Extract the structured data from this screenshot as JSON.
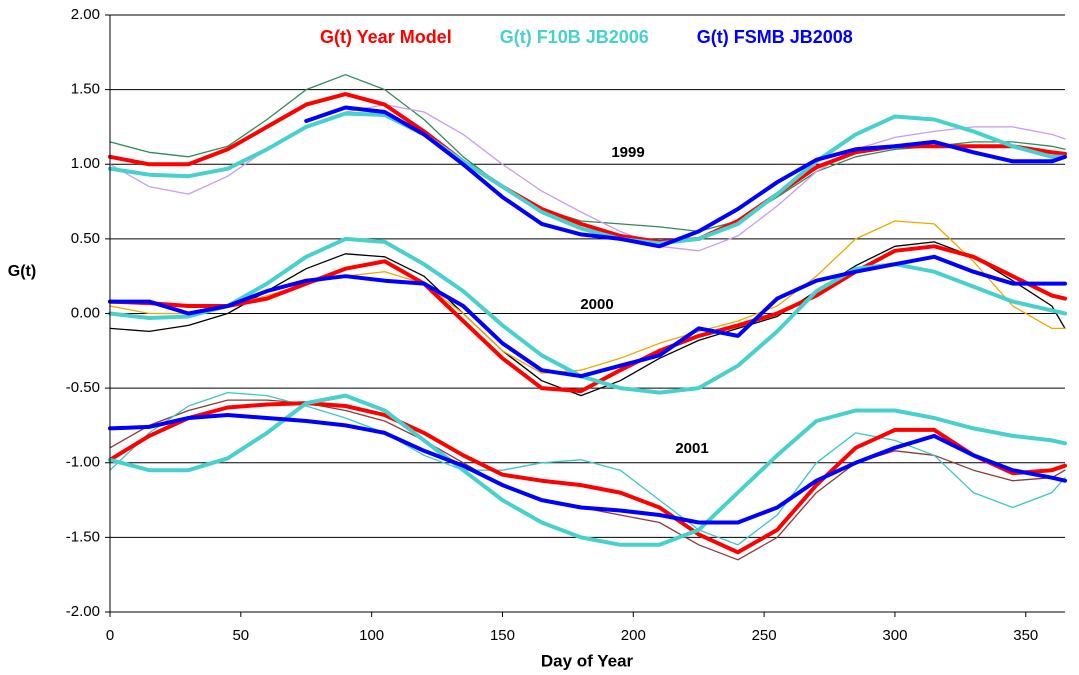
{
  "chart_data": {
    "type": "line",
    "x_label": "Day of Year",
    "y_label": "G(t)",
    "annotations": [
      "1999",
      "2000",
      "2001"
    ],
    "x": [
      0,
      15,
      30,
      45,
      60,
      75,
      90,
      105,
      120,
      135,
      150,
      165,
      180,
      195,
      210,
      225,
      240,
      255,
      270,
      285,
      300,
      315,
      330,
      345,
      360,
      365
    ],
    "xlim": [
      0,
      365
    ],
    "xticks": [
      0,
      50,
      100,
      150,
      200,
      250,
      300,
      350
    ],
    "ylim": [
      -2,
      2
    ],
    "yticks": [
      {
        "value": -2,
        "label": "-2.00"
      },
      {
        "value": -1.5,
        "label": "-1.50"
      },
      {
        "value": -1,
        "label": "-1.00"
      },
      {
        "value": -0.5,
        "label": "-0.50"
      },
      {
        "value": 0,
        "label": "0.00"
      },
      {
        "value": 0.5,
        "label": "0.50"
      },
      {
        "value": 1,
        "label": "1.00"
      },
      {
        "value": 1.5,
        "label": "1.50"
      },
      {
        "value": 2,
        "label": "2.00"
      }
    ],
    "grid": true,
    "legend": "top",
    "series": [
      {
        "color": "#2e8b57",
        "line_width": 1.3,
        "values": [
          1.15,
          1.08,
          1.05,
          1.12,
          1.3,
          1.5,
          1.6,
          1.5,
          1.3,
          1.05,
          0.85,
          0.7,
          0.62,
          0.6,
          0.58,
          0.55,
          0.62,
          0.78,
          0.95,
          1.05,
          1.1,
          1.12,
          1.15,
          1.15,
          1.12,
          1.1
        ]
      },
      {
        "color": "#c89cf0",
        "line_width": 1.3,
        "values": [
          1.0,
          0.85,
          0.8,
          0.92,
          1.1,
          1.25,
          1.35,
          1.4,
          1.35,
          1.2,
          1.0,
          0.82,
          0.68,
          0.55,
          0.45,
          0.42,
          0.52,
          0.72,
          0.95,
          1.1,
          1.18,
          1.22,
          1.25,
          1.25,
          1.2,
          1.17
        ]
      },
      {
        "color": "#000000",
        "line_width": 1.3,
        "values": [
          -0.1,
          -0.12,
          -0.08,
          0.0,
          0.15,
          0.3,
          0.4,
          0.38,
          0.25,
          0.0,
          -0.25,
          -0.45,
          -0.55,
          -0.45,
          -0.3,
          -0.18,
          -0.1,
          -0.02,
          0.15,
          0.32,
          0.45,
          0.48,
          0.38,
          0.22,
          0.05,
          -0.1
        ]
      },
      {
        "color": "#f0a800",
        "line_width": 1.3,
        "values": [
          0.05,
          0.0,
          0.0,
          0.05,
          0.12,
          0.2,
          0.25,
          0.28,
          0.2,
          0.0,
          -0.25,
          -0.4,
          -0.38,
          -0.3,
          -0.2,
          -0.12,
          -0.05,
          0.05,
          0.25,
          0.5,
          0.62,
          0.6,
          0.35,
          0.05,
          -0.1,
          -0.1
        ]
      },
      {
        "color": "#8b3a3a",
        "line_width": 1.3,
        "values": [
          -0.9,
          -0.75,
          -0.65,
          -0.58,
          -0.58,
          -0.6,
          -0.65,
          -0.72,
          -0.85,
          -1.0,
          -1.15,
          -1.25,
          -1.3,
          -1.35,
          -1.4,
          -1.55,
          -1.65,
          -1.5,
          -1.2,
          -1.0,
          -0.92,
          -0.95,
          -1.05,
          -1.12,
          -1.1,
          -1.05
        ]
      },
      {
        "color": "#3cc8c0",
        "line_width": 1.3,
        "values": [
          -1.05,
          -0.8,
          -0.62,
          -0.53,
          -0.55,
          -0.62,
          -0.7,
          -0.8,
          -0.95,
          -1.05,
          -1.05,
          -1.0,
          -0.98,
          -1.05,
          -1.25,
          -1.45,
          -1.55,
          -1.35,
          -1.0,
          -0.8,
          -0.85,
          -0.95,
          -1.2,
          -1.3,
          -1.2,
          -1.1
        ]
      },
      {
        "name": "G(t) Year Model",
        "color": "#ff0000",
        "line_width": 4,
        "values": [
          1.05,
          1.0,
          1.0,
          1.1,
          1.25,
          1.4,
          1.47,
          1.4,
          1.22,
          1.02,
          0.85,
          0.7,
          0.6,
          0.52,
          0.48,
          0.5,
          0.62,
          0.8,
          0.98,
          1.08,
          1.12,
          1.12,
          1.12,
          1.12,
          1.08,
          1.07
        ]
      },
      {
        "name": "G(t) F10B JB2006",
        "color": "#48d1cc",
        "line_width": 4,
        "values": [
          0.97,
          0.93,
          0.92,
          0.97,
          1.1,
          1.25,
          1.34,
          1.33,
          1.2,
          1.02,
          0.85,
          0.68,
          0.57,
          0.5,
          0.47,
          0.5,
          0.6,
          0.8,
          1.02,
          1.2,
          1.32,
          1.3,
          1.22,
          1.12,
          1.05,
          1.05
        ]
      },
      {
        "name": "G(t) FSMB JB2008",
        "color": "#0000ff",
        "line_width": 4,
        "values": [
          null,
          null,
          null,
          null,
          null,
          1.29,
          1.38,
          1.35,
          1.2,
          1.0,
          0.78,
          0.6,
          0.53,
          0.5,
          0.45,
          0.55,
          0.7,
          0.88,
          1.03,
          1.1,
          1.12,
          1.15,
          1.08,
          1.02,
          1.02,
          1.05
        ]
      },
      {
        "color": "#ff0000",
        "line_width": 4,
        "values": [
          0.08,
          0.07,
          0.05,
          0.05,
          0.1,
          0.2,
          0.3,
          0.35,
          0.2,
          -0.05,
          -0.3,
          -0.5,
          -0.52,
          -0.38,
          -0.25,
          -0.15,
          -0.08,
          0.0,
          0.12,
          0.28,
          0.42,
          0.45,
          0.38,
          0.25,
          0.12,
          0.1
        ]
      },
      {
        "color": "#48d1cc",
        "line_width": 4,
        "values": [
          0.0,
          -0.03,
          -0.02,
          0.05,
          0.2,
          0.38,
          0.5,
          0.48,
          0.33,
          0.15,
          -0.08,
          -0.28,
          -0.42,
          -0.5,
          -0.53,
          -0.5,
          -0.35,
          -0.12,
          0.15,
          0.3,
          0.33,
          0.28,
          0.18,
          0.08,
          0.02,
          0.0
        ]
      },
      {
        "color": "#0000ff",
        "line_width": 4,
        "values": [
          0.08,
          0.08,
          0.0,
          0.05,
          0.15,
          0.22,
          0.25,
          0.22,
          0.2,
          0.05,
          -0.2,
          -0.38,
          -0.42,
          -0.35,
          -0.28,
          -0.1,
          -0.15,
          0.1,
          0.22,
          0.28,
          0.33,
          0.38,
          0.28,
          0.2,
          0.2,
          0.2
        ]
      },
      {
        "color": "#ff0000",
        "line_width": 4,
        "values": [
          -0.98,
          -0.82,
          -0.7,
          -0.63,
          -0.61,
          -0.6,
          -0.62,
          -0.68,
          -0.8,
          -0.95,
          -1.08,
          -1.12,
          -1.15,
          -1.2,
          -1.3,
          -1.48,
          -1.6,
          -1.45,
          -1.15,
          -0.9,
          -0.78,
          -0.78,
          -0.95,
          -1.07,
          -1.05,
          -1.02
        ]
      },
      {
        "color": "#48d1cc",
        "line_width": 4,
        "values": [
          -0.98,
          -1.05,
          -1.05,
          -0.97,
          -0.8,
          -0.6,
          -0.55,
          -0.65,
          -0.85,
          -1.05,
          -1.25,
          -1.4,
          -1.5,
          -1.55,
          -1.55,
          -1.45,
          -1.2,
          -0.95,
          -0.72,
          -0.65,
          -0.65,
          -0.7,
          -0.77,
          -0.82,
          -0.85,
          -0.87
        ]
      },
      {
        "color": "#0000ff",
        "line_width": 4,
        "values": [
          -0.77,
          -0.76,
          -0.7,
          -0.68,
          -0.7,
          -0.72,
          -0.75,
          -0.8,
          -0.92,
          -1.02,
          -1.15,
          -1.25,
          -1.3,
          -1.32,
          -1.35,
          -1.4,
          -1.4,
          -1.3,
          -1.12,
          -1.0,
          -0.9,
          -0.82,
          -0.95,
          -1.05,
          -1.1,
          -1.12
        ]
      }
    ]
  }
}
